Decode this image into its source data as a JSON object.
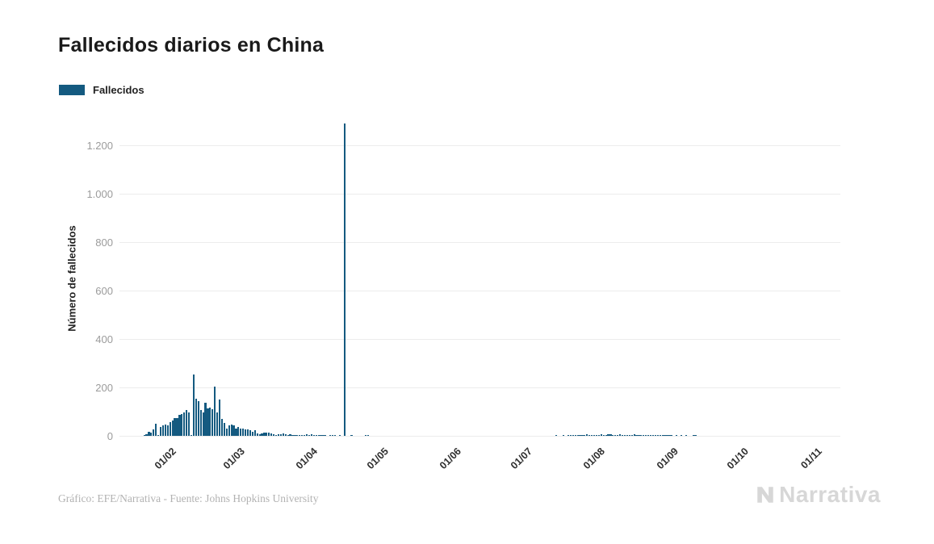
{
  "header": {
    "title": "Fallecidos diarios en China"
  },
  "legend": {
    "items": [
      {
        "label": "Fallecidos",
        "color": "#145a80"
      }
    ]
  },
  "footer": {
    "credit": "Gráfico: EFE/Narrativa - Fuente: Johns Hopkins University",
    "brand": "Narrativa"
  },
  "chart_data": {
    "type": "bar",
    "title": "Fallecidos diarios en China",
    "series_name": "Fallecidos",
    "xlabel": "",
    "ylabel": "Número de fallecidos",
    "bar_color": "#145a80",
    "grid": "horizontal",
    "gridline_color": "#ececec",
    "legend_position": "top-left",
    "ylim": [
      0,
      1300
    ],
    "y_ticks": [
      0,
      200,
      400,
      600,
      800,
      1000,
      1200
    ],
    "y_tick_labels": [
      "0",
      "200",
      "400",
      "600",
      "800",
      "1.000",
      "1.200"
    ],
    "x_ticks": [
      "01/02",
      "01/03",
      "01/04",
      "01/05",
      "01/06",
      "01/07",
      "01/08",
      "01/09",
      "01/10",
      "01/11"
    ],
    "x_domain": {
      "start": "13/01",
      "end": "14/11",
      "year": 2020,
      "note": "daily bars, dd/mm; days not listed in points have value 0"
    },
    "points": [
      {
        "d": "23/01",
        "v": 1
      },
      {
        "d": "24/01",
        "v": 8
      },
      {
        "d": "25/01",
        "v": 16
      },
      {
        "d": "26/01",
        "v": 14
      },
      {
        "d": "27/01",
        "v": 26
      },
      {
        "d": "28/01",
        "v": 49
      },
      {
        "d": "29/01",
        "v": 2
      },
      {
        "d": "30/01",
        "v": 38
      },
      {
        "d": "31/01",
        "v": 43
      },
      {
        "d": "01/02",
        "v": 46
      },
      {
        "d": "02/02",
        "v": 45
      },
      {
        "d": "03/02",
        "v": 57
      },
      {
        "d": "04/02",
        "v": 64
      },
      {
        "d": "05/02",
        "v": 73
      },
      {
        "d": "06/02",
        "v": 73
      },
      {
        "d": "07/02",
        "v": 86
      },
      {
        "d": "08/02",
        "v": 89
      },
      {
        "d": "09/02",
        "v": 97
      },
      {
        "d": "10/02",
        "v": 108
      },
      {
        "d": "11/02",
        "v": 97
      },
      {
        "d": "12/02",
        "v": 5
      },
      {
        "d": "13/02",
        "v": 254
      },
      {
        "d": "14/02",
        "v": 152
      },
      {
        "d": "15/02",
        "v": 142
      },
      {
        "d": "16/02",
        "v": 106
      },
      {
        "d": "17/02",
        "v": 98
      },
      {
        "d": "18/02",
        "v": 136
      },
      {
        "d": "19/02",
        "v": 115
      },
      {
        "d": "20/02",
        "v": 118
      },
      {
        "d": "21/02",
        "v": 109
      },
      {
        "d": "22/02",
        "v": 205
      },
      {
        "d": "23/02",
        "v": 97
      },
      {
        "d": "24/02",
        "v": 150
      },
      {
        "d": "25/02",
        "v": 71
      },
      {
        "d": "26/02",
        "v": 52
      },
      {
        "d": "27/02",
        "v": 29
      },
      {
        "d": "28/02",
        "v": 44
      },
      {
        "d": "29/02",
        "v": 47
      },
      {
        "d": "01/03",
        "v": 42
      },
      {
        "d": "02/03",
        "v": 31
      },
      {
        "d": "03/03",
        "v": 38
      },
      {
        "d": "04/03",
        "v": 31
      },
      {
        "d": "05/03",
        "v": 30
      },
      {
        "d": "06/03",
        "v": 28
      },
      {
        "d": "07/03",
        "v": 27
      },
      {
        "d": "08/03",
        "v": 22
      },
      {
        "d": "09/03",
        "v": 17
      },
      {
        "d": "10/03",
        "v": 22
      },
      {
        "d": "11/03",
        "v": 11
      },
      {
        "d": "12/03",
        "v": 7
      },
      {
        "d": "13/03",
        "v": 11
      },
      {
        "d": "14/03",
        "v": 13
      },
      {
        "d": "15/03",
        "v": 14
      },
      {
        "d": "16/03",
        "v": 13
      },
      {
        "d": "17/03",
        "v": 11
      },
      {
        "d": "18/03",
        "v": 8
      },
      {
        "d": "19/03",
        "v": 3
      },
      {
        "d": "20/03",
        "v": 7
      },
      {
        "d": "21/03",
        "v": 6
      },
      {
        "d": "22/03",
        "v": 9
      },
      {
        "d": "23/03",
        "v": 7
      },
      {
        "d": "24/03",
        "v": 4
      },
      {
        "d": "25/03",
        "v": 6
      },
      {
        "d": "26/03",
        "v": 5
      },
      {
        "d": "27/03",
        "v": 3
      },
      {
        "d": "28/03",
        "v": 5
      },
      {
        "d": "29/03",
        "v": 3
      },
      {
        "d": "30/03",
        "v": 2
      },
      {
        "d": "31/03",
        "v": 1
      },
      {
        "d": "01/04",
        "v": 7
      },
      {
        "d": "02/04",
        "v": 4
      },
      {
        "d": "03/04",
        "v": 6
      },
      {
        "d": "04/04",
        "v": 2
      },
      {
        "d": "05/04",
        "v": 1
      },
      {
        "d": "06/04",
        "v": 2
      },
      {
        "d": "07/04",
        "v": 2
      },
      {
        "d": "08/04",
        "v": 2
      },
      {
        "d": "09/04",
        "v": 1
      },
      {
        "d": "11/04",
        "v": 3
      },
      {
        "d": "12/04",
        "v": 2
      },
      {
        "d": "13/04",
        "v": 1
      },
      {
        "d": "15/04",
        "v": 1
      },
      {
        "d": "17/04",
        "v": 1290
      },
      {
        "d": "20/04",
        "v": 3
      },
      {
        "d": "26/04",
        "v": 1
      },
      {
        "d": "27/04",
        "v": 3
      },
      {
        "d": "16/07",
        "v": 1
      },
      {
        "d": "19/07",
        "v": 2
      },
      {
        "d": "21/07",
        "v": 1
      },
      {
        "d": "22/07",
        "v": 2
      },
      {
        "d": "23/07",
        "v": 2
      },
      {
        "d": "24/07",
        "v": 3
      },
      {
        "d": "25/07",
        "v": 2
      },
      {
        "d": "26/07",
        "v": 4
      },
      {
        "d": "27/07",
        "v": 3
      },
      {
        "d": "28/07",
        "v": 5
      },
      {
        "d": "29/07",
        "v": 6
      },
      {
        "d": "30/07",
        "v": 5
      },
      {
        "d": "31/07",
        "v": 4
      },
      {
        "d": "01/08",
        "v": 5
      },
      {
        "d": "02/08",
        "v": 3
      },
      {
        "d": "03/08",
        "v": 4
      },
      {
        "d": "04/08",
        "v": 6
      },
      {
        "d": "05/08",
        "v": 5
      },
      {
        "d": "06/08",
        "v": 5
      },
      {
        "d": "07/08",
        "v": 7
      },
      {
        "d": "08/08",
        "v": 6
      },
      {
        "d": "09/08",
        "v": 5
      },
      {
        "d": "10/08",
        "v": 4
      },
      {
        "d": "11/08",
        "v": 5
      },
      {
        "d": "12/08",
        "v": 6
      },
      {
        "d": "13/08",
        "v": 4
      },
      {
        "d": "14/08",
        "v": 5
      },
      {
        "d": "15/08",
        "v": 3
      },
      {
        "d": "16/08",
        "v": 4
      },
      {
        "d": "17/08",
        "v": 5
      },
      {
        "d": "18/08",
        "v": 6
      },
      {
        "d": "19/08",
        "v": 5
      },
      {
        "d": "20/08",
        "v": 3
      },
      {
        "d": "21/08",
        "v": 2
      },
      {
        "d": "22/08",
        "v": 3
      },
      {
        "d": "23/08",
        "v": 2
      },
      {
        "d": "24/08",
        "v": 2
      },
      {
        "d": "25/08",
        "v": 3
      },
      {
        "d": "26/08",
        "v": 1
      },
      {
        "d": "27/08",
        "v": 2
      },
      {
        "d": "28/08",
        "v": 1
      },
      {
        "d": "29/08",
        "v": 2
      },
      {
        "d": "30/08",
        "v": 1
      },
      {
        "d": "31/08",
        "v": 2
      },
      {
        "d": "01/09",
        "v": 1
      },
      {
        "d": "02/09",
        "v": 2
      },
      {
        "d": "03/09",
        "v": 1
      },
      {
        "d": "05/09",
        "v": 1
      },
      {
        "d": "07/09",
        "v": 1
      },
      {
        "d": "09/09",
        "v": 1
      },
      {
        "d": "12/09",
        "v": 1
      },
      {
        "d": "13/09",
        "v": 1
      }
    ]
  }
}
